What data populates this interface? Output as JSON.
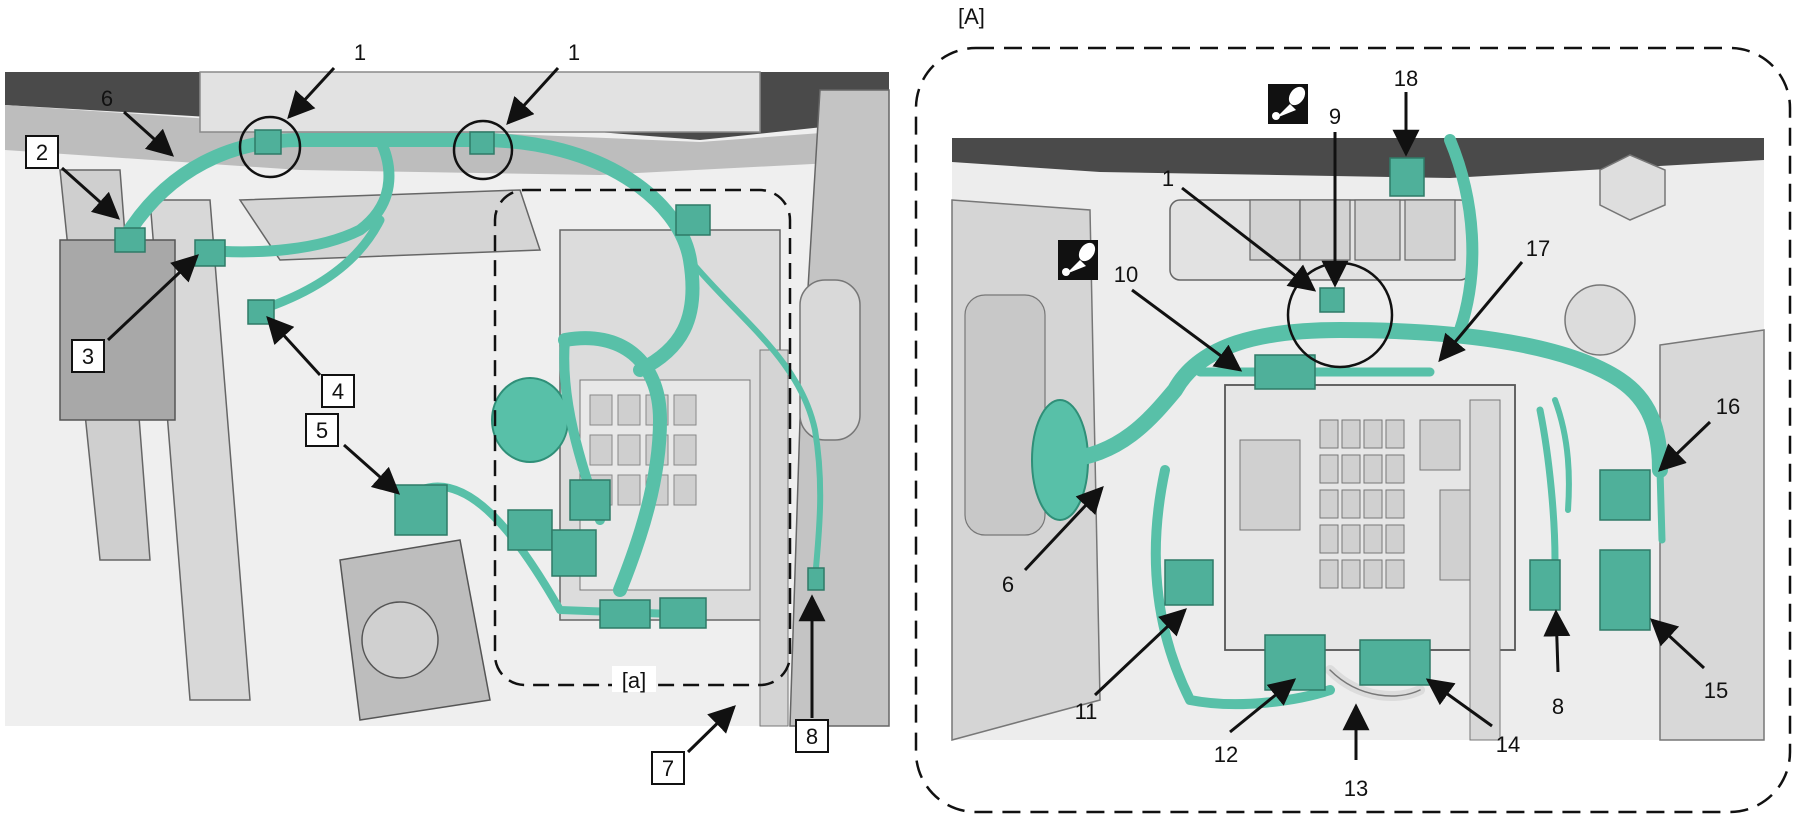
{
  "detail_ref_inline": "[a]",
  "detail_ref_title": "[A]",
  "callouts_left": [
    "1",
    "1",
    "6",
    "2",
    "3",
    "4",
    "5",
    "7",
    "8"
  ],
  "callouts_right": [
    "18",
    "9",
    "1",
    "17",
    "10",
    "16",
    "6",
    "11",
    "12",
    "13",
    "14",
    "8",
    "15"
  ],
  "icons": [
    "grease-icon",
    "grease-icon"
  ],
  "colors": {
    "harness": "#58c0a8",
    "harness_dark": "#2f8f78",
    "connector": "#4fb09a",
    "metal_light": "#e6e6e6",
    "metal_mid": "#c9c9c9",
    "metal_dark": "#7a7a7a",
    "panel_dark": "#3f3f3f",
    "line": "#111111"
  }
}
